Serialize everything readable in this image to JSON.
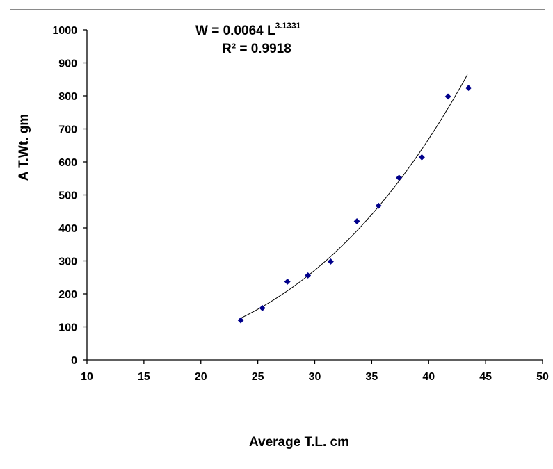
{
  "chart_data": {
    "type": "scatter",
    "title": "",
    "xlabel": "Average T.L. cm",
    "ylabel": "A T.Wt. gm",
    "xlim": [
      10,
      50
    ],
    "ylim": [
      0,
      1000
    ],
    "xticks": [
      10,
      15,
      20,
      25,
      30,
      35,
      40,
      45,
      50
    ],
    "yticks": [
      0,
      100,
      200,
      300,
      400,
      500,
      600,
      700,
      800,
      900,
      1000
    ],
    "grid": false,
    "legend": "none",
    "series": [
      {
        "marker": "diamond",
        "color": "#00008b",
        "points": [
          {
            "x": 23.5,
            "y": 120
          },
          {
            "x": 25.4,
            "y": 157
          },
          {
            "x": 27.6,
            "y": 237
          },
          {
            "x": 29.4,
            "y": 256
          },
          {
            "x": 31.4,
            "y": 298
          },
          {
            "x": 33.7,
            "y": 420
          },
          {
            "x": 35.6,
            "y": 467
          },
          {
            "x": 37.4,
            "y": 552
          },
          {
            "x": 39.4,
            "y": 614
          },
          {
            "x": 41.7,
            "y": 798
          },
          {
            "x": 43.5,
            "y": 824
          }
        ]
      }
    ],
    "trendline": {
      "type": "power",
      "coefficient": 0.0064,
      "exponent": 3.1331,
      "x_from": 23.5,
      "x_to": 43.4,
      "color": "#000000"
    },
    "annotations": {
      "equation_main": "W = 0.0064 L",
      "equation_exponent": "3.1331",
      "r_squared": "R² = 0.9918"
    }
  }
}
